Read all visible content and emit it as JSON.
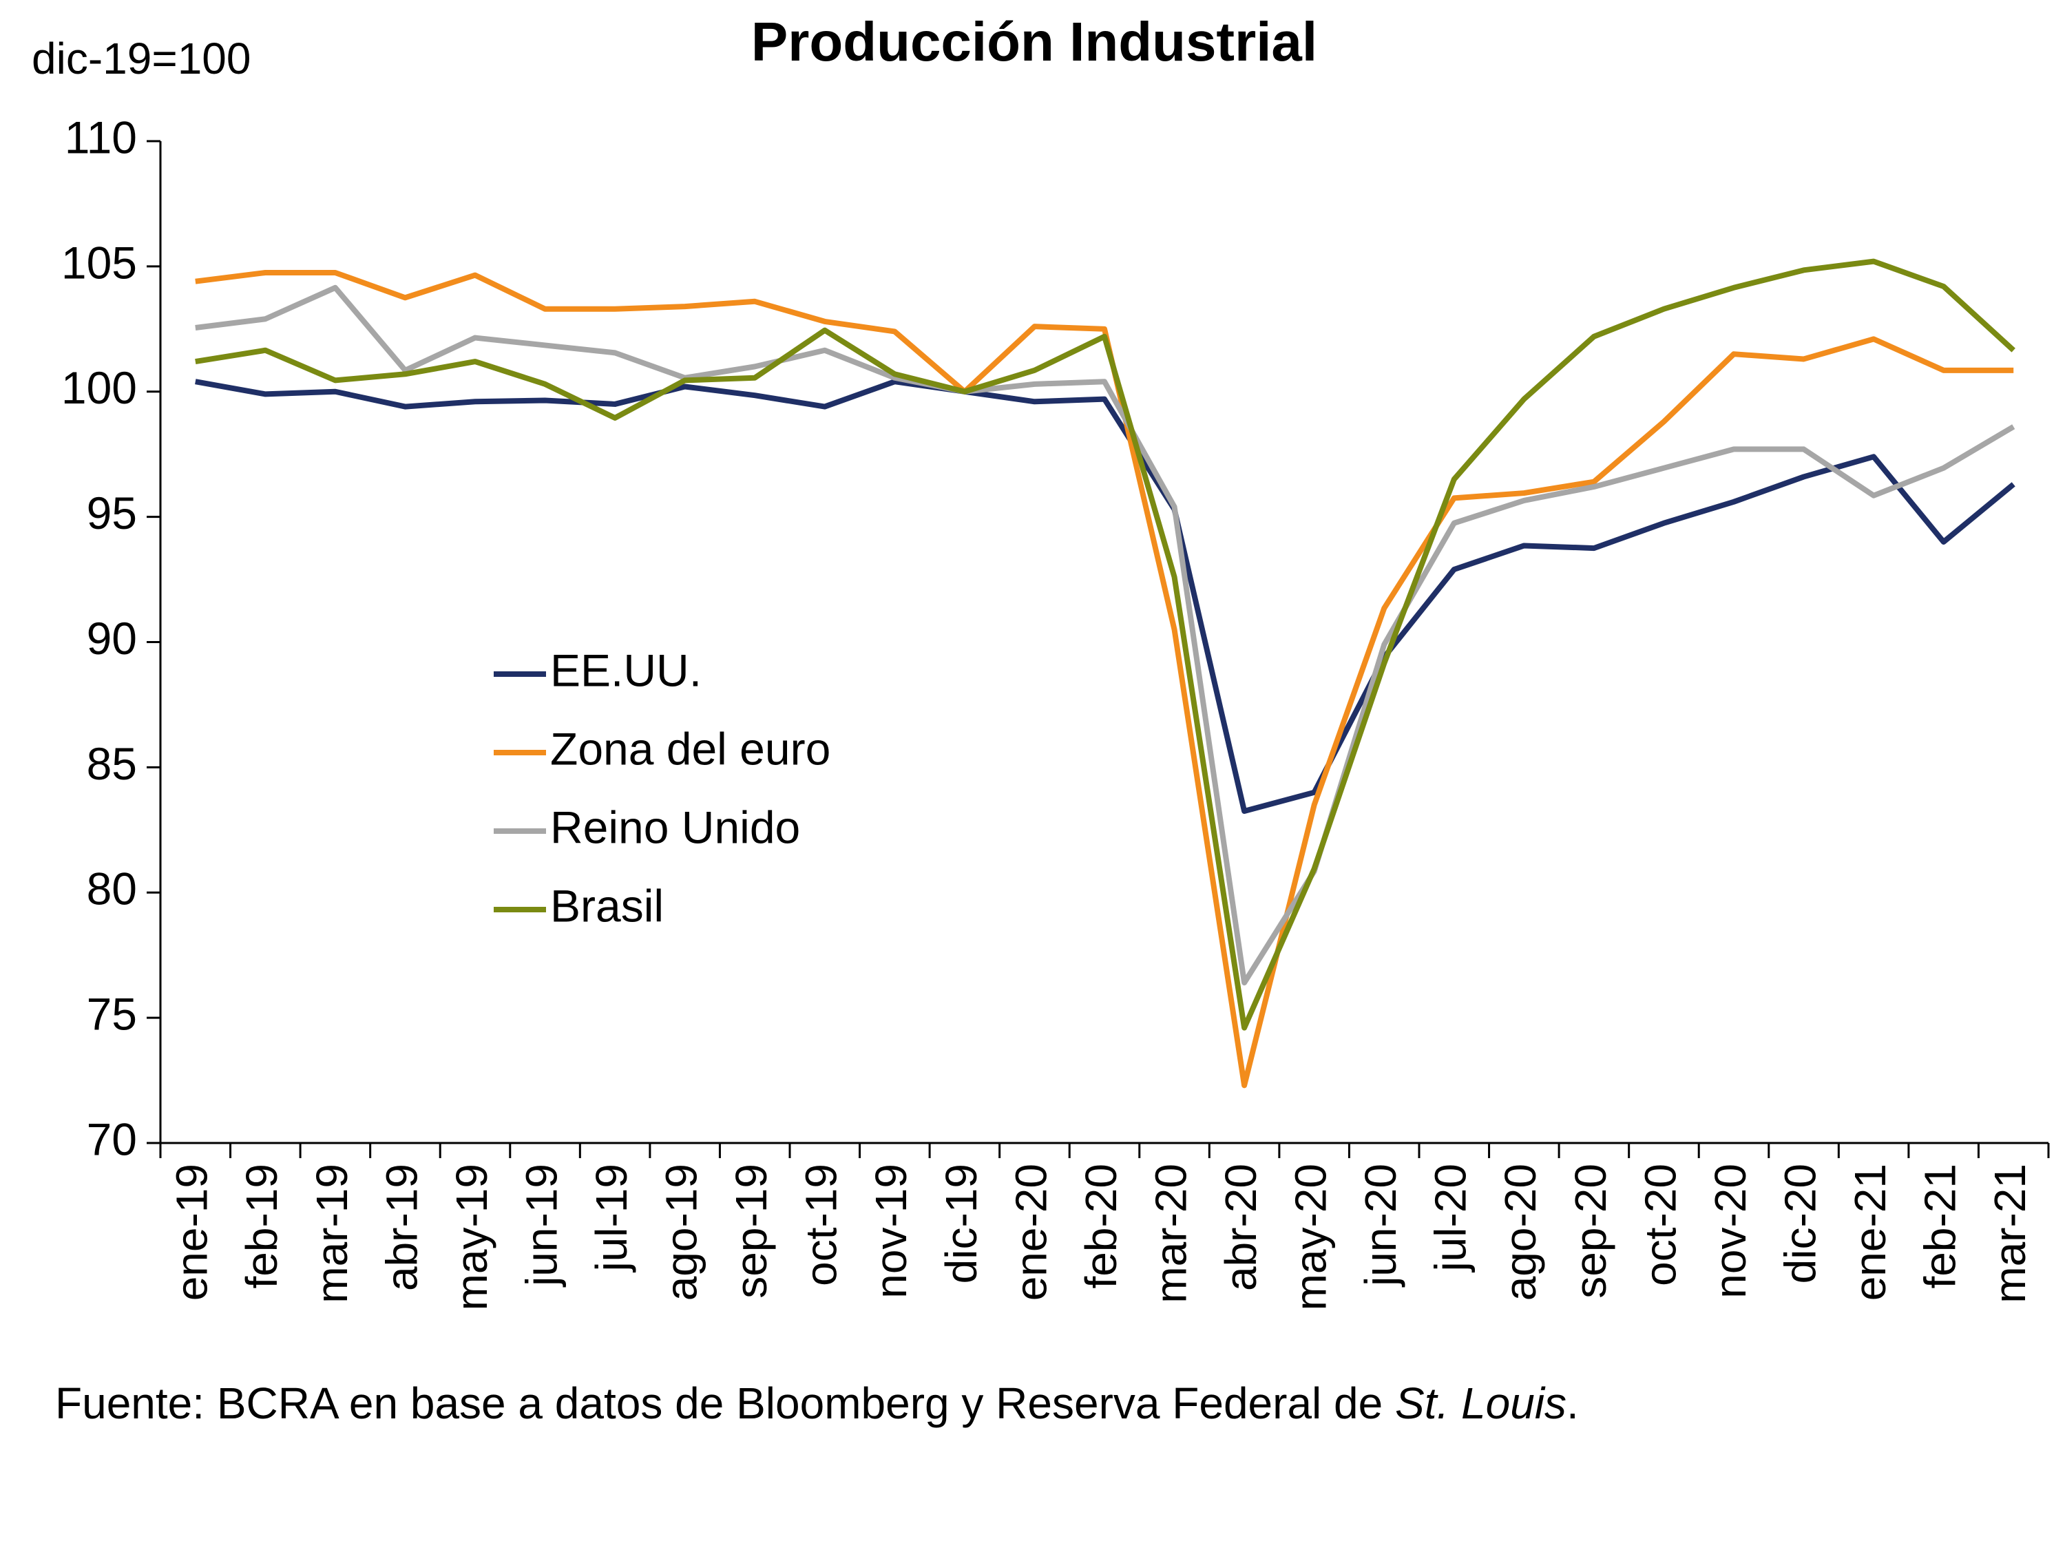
{
  "chart_data": {
    "type": "line",
    "title": "Producción Industrial",
    "y_label": "dic-19=100",
    "source": {
      "text": "Fuente: BCRA en base a datos de Bloomberg y Reserva Federal de ",
      "italic": "St. Louis",
      "end": "."
    },
    "categories": [
      "ene-19",
      "feb-19",
      "mar-19",
      "abr-19",
      "may-19",
      "jun-19",
      "jul-19",
      "ago-19",
      "sep-19",
      "oct-19",
      "nov-19",
      "dic-19",
      "ene-20",
      "feb-20",
      "mar-20",
      "abr-20",
      "may-20",
      "jun-20",
      "jul-20",
      "ago-20",
      "sep-20",
      "oct-20",
      "nov-20",
      "dic-20",
      "ene-21",
      "feb-21",
      "mar-21"
    ],
    "series": [
      {
        "name": "EE.UU.",
        "color": "#1f2f66",
        "values": [
          100.4,
          99.9,
          100.0,
          99.4,
          99.6,
          99.65,
          99.5,
          100.2,
          99.85,
          99.4,
          100.4,
          100,
          99.6,
          99.7,
          95.3,
          83.25,
          84.0,
          89.4,
          92.9,
          93.85,
          93.75,
          94.75,
          95.6,
          96.6,
          97.4,
          94.0,
          96.3
        ]
      },
      {
        "name": "Zona del euro",
        "color": "#f28c1c",
        "values": [
          104.4,
          104.75,
          104.75,
          103.75,
          104.65,
          103.3,
          103.3,
          103.4,
          103.6,
          102.8,
          102.4,
          100,
          102.6,
          102.5,
          90.5,
          72.3,
          83.5,
          91.35,
          95.75,
          95.95,
          96.4,
          98.8,
          101.5,
          101.3,
          102.1,
          100.85,
          100.85
        ]
      },
      {
        "name": "Reino Unido",
        "color": "#a6a6a6",
        "values": [
          102.55,
          102.9,
          104.15,
          100.85,
          102.15,
          101.85,
          101.55,
          100.55,
          101.0,
          101.65,
          100.55,
          100,
          100.3,
          100.4,
          95.4,
          76.4,
          80.85,
          89.9,
          94.75,
          95.65,
          96.2,
          96.95,
          97.7,
          97.7,
          95.85,
          96.95,
          98.6
        ]
      },
      {
        "name": "Brasil",
        "color": "#7a8a12",
        "values": [
          101.2,
          101.65,
          100.45,
          100.7,
          101.2,
          100.3,
          98.95,
          100.45,
          100.55,
          102.45,
          100.7,
          100,
          100.85,
          102.2,
          92.6,
          74.6,
          80.95,
          89.15,
          96.5,
          99.7,
          102.2,
          103.3,
          104.15,
          104.85,
          105.2,
          104.2,
          101.65
        ]
      }
    ],
    "ylim": [
      70,
      110
    ],
    "yticks": [
      70,
      75,
      80,
      85,
      90,
      95,
      100,
      105,
      110
    ],
    "legend": "center-left"
  }
}
